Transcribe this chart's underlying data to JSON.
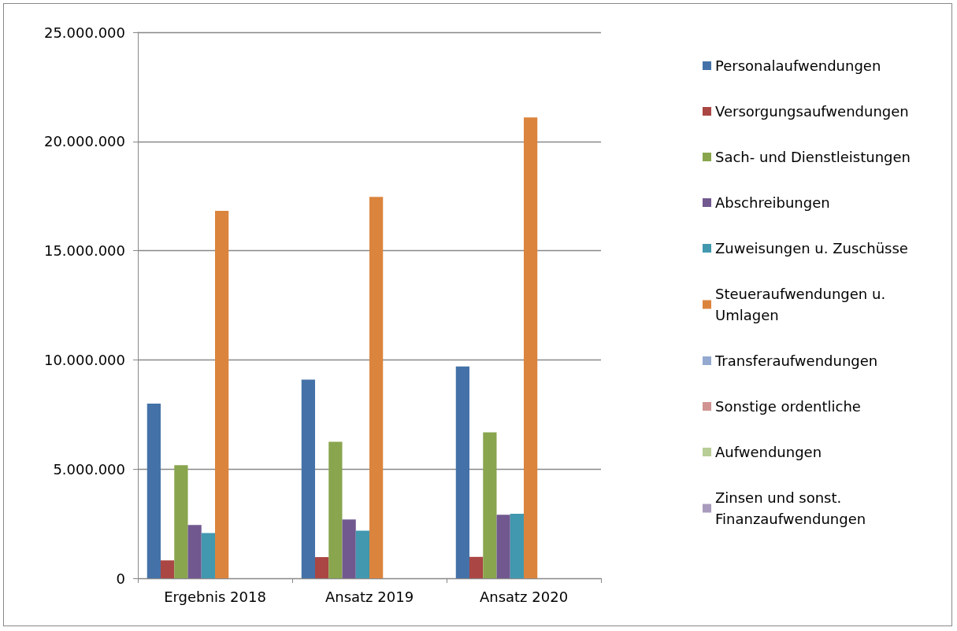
{
  "chart_data": {
    "type": "bar",
    "categories": [
      "Ergebnis 2018",
      "Ansatz 2019",
      "Ansatz 2020"
    ],
    "series": [
      {
        "name": "Personalaufwendungen",
        "color": "#4472a8",
        "values": [
          8000000,
          9100000,
          9700000
        ]
      },
      {
        "name": "Versorgungsaufwendungen",
        "color": "#aa4643",
        "values": [
          820000,
          970000,
          980000
        ]
      },
      {
        "name": "Sach- und Dienstleistungen",
        "color": "#89a54e",
        "values": [
          5180000,
          6250000,
          6680000
        ]
      },
      {
        "name": "Abschreibungen",
        "color": "#71588f",
        "values": [
          2440000,
          2690000,
          2910000
        ]
      },
      {
        "name": "Zuweisungen u. Zuschüsse",
        "color": "#4198af",
        "values": [
          2070000,
          2180000,
          2950000
        ]
      },
      {
        "name": "Steueraufwendungen u. Umlagen",
        "color": "#db843d",
        "values": [
          16820000,
          17460000,
          21100000
        ]
      },
      {
        "name": "Transferaufwendungen",
        "color": "#93a9cf",
        "values": [
          0,
          0,
          0
        ]
      },
      {
        "name": "Sonstige ordentliche",
        "color": "#d19392",
        "values": [
          0,
          0,
          0
        ]
      },
      {
        "name": "Aufwendungen",
        "color": "#b9cd96",
        "values": [
          0,
          0,
          0
        ]
      },
      {
        "name": "Zinsen und sonst. Finanzaufwendungen",
        "color": "#a99bbd",
        "values": [
          0,
          0,
          0
        ]
      }
    ],
    "ylim": [
      0,
      25000000
    ],
    "yticks": [
      0,
      {
        "value": 5000000,
        "label": "5.000.000"
      },
      {
        "value": 10000000,
        "label": "10.000.000"
      },
      {
        "value": 15000000,
        "label": "15.000.000"
      },
      {
        "value": 20000000,
        "label": "20.000.000"
      },
      {
        "value": 25000000,
        "label": "25.000.000"
      }
    ],
    "grid": "y",
    "legend": "right"
  }
}
